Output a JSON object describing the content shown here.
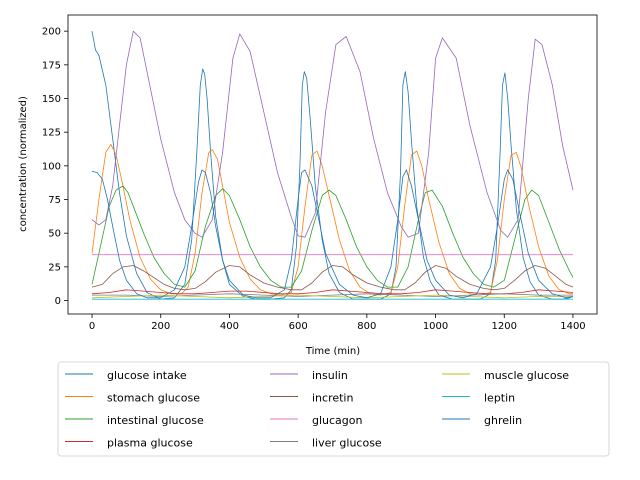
{
  "chart_data": {
    "type": "line",
    "title": "",
    "xlabel": "Time (min)",
    "ylabel": "concentration (normalized)",
    "xlim": [
      -70,
      1470
    ],
    "ylim": [
      -10,
      212
    ],
    "xticks": [
      0,
      200,
      400,
      600,
      800,
      1000,
      1200,
      1400
    ],
    "yticks": [
      0,
      25,
      50,
      75,
      100,
      125,
      150,
      175,
      200
    ],
    "grid": false,
    "legend_position": "below plot, 3 columns",
    "colors": {
      "blue": "#1f77b4",
      "orange": "#ff7f0e",
      "green": "#2ca02c",
      "red": "#d62728",
      "purple": "#9467bd",
      "brown": "#8c564b",
      "pink": "#e377c2",
      "gray": "#7f7f7f",
      "olive": "#bcbd22",
      "cyan": "#17becf"
    },
    "series": [
      {
        "name": "glucose intake",
        "color": "#1f77b4",
        "x": [
          0,
          10,
          20,
          40,
          60,
          80,
          100,
          130,
          160,
          200,
          240,
          270,
          290,
          305,
          315,
          322,
          328,
          335,
          345,
          360,
          380,
          400,
          440,
          480,
          520,
          560,
          580,
          595,
          605,
          612,
          618,
          625,
          635,
          650,
          670,
          690,
          720,
          760,
          800,
          840,
          870,
          885,
          898,
          905,
          912,
          920,
          930,
          945,
          965,
          985,
          1010,
          1050,
          1090,
          1130,
          1160,
          1175,
          1188,
          1195,
          1202,
          1210,
          1220,
          1235,
          1255,
          1275,
          1300,
          1340,
          1370,
          1390,
          1400
        ],
        "y": [
          200,
          186,
          182,
          160,
          120,
          80,
          48,
          20,
          6,
          1,
          2,
          12,
          45,
          110,
          160,
          172,
          168,
          150,
          110,
          62,
          30,
          12,
          3,
          1,
          1,
          2,
          8,
          40,
          100,
          160,
          170,
          165,
          135,
          85,
          45,
          20,
          6,
          1,
          1,
          1,
          5,
          25,
          95,
          160,
          170,
          155,
          118,
          70,
          32,
          14,
          4,
          1,
          1,
          1,
          5,
          30,
          110,
          160,
          169,
          150,
          115,
          68,
          32,
          14,
          4,
          1,
          1,
          2,
          3
        ]
      },
      {
        "name": "stomach glucose",
        "color": "#ff7f0e",
        "x": [
          0,
          20,
          40,
          55,
          70,
          90,
          110,
          140,
          170,
          200,
          230,
          260,
          280,
          300,
          320,
          340,
          350,
          365,
          380,
          400,
          430,
          460,
          490,
          520,
          550,
          580,
          600,
          620,
          640,
          655,
          670,
          690,
          720,
          750,
          780,
          810,
          840,
          870,
          890,
          910,
          930,
          945,
          960,
          980,
          1010,
          1040,
          1070,
          1100,
          1130,
          1160,
          1180,
          1200,
          1220,
          1235,
          1250,
          1270,
          1300,
          1330,
          1360,
          1390,
          1400
        ],
        "y": [
          35,
          75,
          110,
          116,
          108,
          85,
          60,
          32,
          16,
          8,
          5,
          5,
          10,
          35,
          80,
          110,
          112,
          105,
          85,
          58,
          32,
          16,
          8,
          5,
          4,
          6,
          25,
          70,
          108,
          111,
          100,
          78,
          45,
          22,
          10,
          5,
          4,
          6,
          25,
          70,
          108,
          111,
          100,
          75,
          43,
          20,
          9,
          5,
          4,
          6,
          30,
          75,
          108,
          110,
          98,
          72,
          40,
          18,
          8,
          5,
          5
        ]
      },
      {
        "name": "intestinal glucose",
        "color": "#2ca02c",
        "x": [
          0,
          20,
          50,
          70,
          90,
          105,
          120,
          150,
          180,
          210,
          240,
          270,
          300,
          330,
          360,
          380,
          400,
          430,
          460,
          490,
          520,
          550,
          580,
          610,
          640,
          670,
          690,
          710,
          740,
          770,
          800,
          830,
          860,
          890,
          920,
          950,
          970,
          990,
          1020,
          1050,
          1080,
          1110,
          1140,
          1170,
          1200,
          1230,
          1260,
          1280,
          1300,
          1330,
          1360,
          1390,
          1400
        ],
        "y": [
          12,
          35,
          70,
          82,
          85,
          80,
          70,
          50,
          32,
          20,
          12,
          10,
          22,
          55,
          78,
          83,
          78,
          60,
          40,
          25,
          15,
          10,
          10,
          22,
          52,
          78,
          82,
          78,
          60,
          40,
          25,
          15,
          10,
          10,
          25,
          60,
          80,
          82,
          70,
          50,
          32,
          20,
          12,
          10,
          15,
          45,
          75,
          82,
          78,
          58,
          38,
          22,
          17
        ]
      },
      {
        "name": "plasma glucose",
        "color": "#d62728",
        "x": [
          0,
          50,
          100,
          150,
          200,
          250,
          300,
          350,
          400,
          450,
          500,
          550,
          600,
          650,
          700,
          750,
          800,
          850,
          900,
          950,
          1000,
          1050,
          1100,
          1150,
          1200,
          1250,
          1300,
          1350,
          1400
        ],
        "y": [
          5,
          6,
          8,
          7,
          6,
          5,
          5,
          6,
          7,
          7,
          6,
          5,
          5,
          6,
          8,
          7,
          6,
          5,
          5,
          6,
          8,
          7,
          6,
          5,
          5,
          6,
          8,
          7,
          6
        ]
      },
      {
        "name": "insulin",
        "color": "#9467bd",
        "x": [
          0,
          20,
          40,
          60,
          80,
          100,
          120,
          140,
          160,
          200,
          240,
          270,
          300,
          320,
          350,
          380,
          410,
          430,
          460,
          500,
          540,
          580,
          600,
          620,
          650,
          680,
          710,
          740,
          780,
          820,
          860,
          900,
          920,
          950,
          980,
          1000,
          1020,
          1060,
          1100,
          1150,
          1190,
          1210,
          1240,
          1270,
          1290,
          1310,
          1340,
          1370,
          1400
        ],
        "y": [
          60,
          56,
          60,
          85,
          130,
          175,
          200,
          195,
          170,
          120,
          80,
          60,
          50,
          47,
          60,
          110,
          180,
          198,
          185,
          140,
          95,
          62,
          48,
          47,
          65,
          140,
          190,
          196,
          170,
          120,
          80,
          55,
          47,
          50,
          110,
          180,
          195,
          180,
          130,
          80,
          52,
          47,
          60,
          150,
          194,
          190,
          160,
          115,
          82
        ]
      },
      {
        "name": "incretin",
        "color": "#8c564b",
        "x": [
          0,
          30,
          60,
          90,
          120,
          150,
          180,
          210,
          240,
          270,
          300,
          330,
          360,
          400,
          430,
          460,
          500,
          540,
          580,
          610,
          640,
          670,
          700,
          730,
          760,
          800,
          840,
          880,
          910,
          940,
          970,
          1000,
          1030,
          1060,
          1100,
          1140,
          1170,
          1200,
          1230,
          1260,
          1290,
          1320,
          1350,
          1380,
          1400
        ],
        "y": [
          10,
          12,
          20,
          25,
          26,
          22,
          17,
          12,
          9,
          8,
          9,
          14,
          21,
          26,
          25,
          19,
          13,
          10,
          8,
          8,
          13,
          21,
          26,
          25,
          19,
          13,
          10,
          8,
          8,
          13,
          21,
          26,
          24,
          18,
          12,
          9,
          8,
          9,
          15,
          22,
          26,
          24,
          18,
          12,
          10
        ]
      },
      {
        "name": "glucagon",
        "color": "#e377c2",
        "x": [
          0,
          1400
        ],
        "y": [
          34,
          34
        ]
      },
      {
        "name": "liver glucose",
        "color": "#7f7f7f",
        "x": [
          0,
          100,
          200,
          300,
          400,
          500,
          600,
          700,
          800,
          900,
          1000,
          1100,
          1200,
          1300,
          1400
        ],
        "y": [
          4,
          4,
          3,
          4,
          5,
          4,
          3,
          4,
          5,
          4,
          3,
          4,
          5,
          4,
          4
        ]
      },
      {
        "name": "muscle glucose",
        "color": "#bcbd22",
        "x": [
          0,
          100,
          200,
          300,
          400,
          500,
          600,
          700,
          800,
          900,
          1000,
          1100,
          1200,
          1300,
          1400
        ],
        "y": [
          2,
          3,
          4,
          3,
          2,
          3,
          4,
          3,
          2,
          3,
          4,
          3,
          2,
          3,
          3
        ]
      },
      {
        "name": "leptin",
        "color": "#17becf",
        "x": [
          0,
          200,
          400,
          600,
          800,
          1000,
          1200,
          1400
        ],
        "y": [
          1,
          1,
          1,
          1,
          1,
          1,
          1,
          1
        ]
      },
      {
        "name": "ghrelin",
        "color": "#1f77b4",
        "x": [
          0,
          15,
          30,
          45,
          60,
          80,
          100,
          130,
          160,
          200,
          240,
          270,
          290,
          310,
          320,
          330,
          345,
          360,
          380,
          400,
          440,
          480,
          520,
          560,
          580,
          600,
          610,
          620,
          640,
          660,
          680,
          720,
          760,
          800,
          840,
          870,
          890,
          905,
          915,
          930,
          950,
          975,
          1000,
          1040,
          1080,
          1120,
          1160,
          1180,
          1200,
          1210,
          1225,
          1245,
          1270,
          1300,
          1340,
          1380,
          1400
        ],
        "y": [
          96,
          95,
          90,
          75,
          55,
          30,
          15,
          5,
          2,
          2,
          8,
          25,
          55,
          88,
          97,
          95,
          80,
          55,
          30,
          15,
          4,
          2,
          2,
          8,
          30,
          75,
          95,
          97,
          85,
          60,
          35,
          12,
          4,
          2,
          5,
          25,
          60,
          92,
          97,
          85,
          60,
          30,
          15,
          4,
          2,
          5,
          25,
          55,
          90,
          97,
          90,
          65,
          35,
          15,
          5,
          2,
          3
        ]
      }
    ]
  }
}
